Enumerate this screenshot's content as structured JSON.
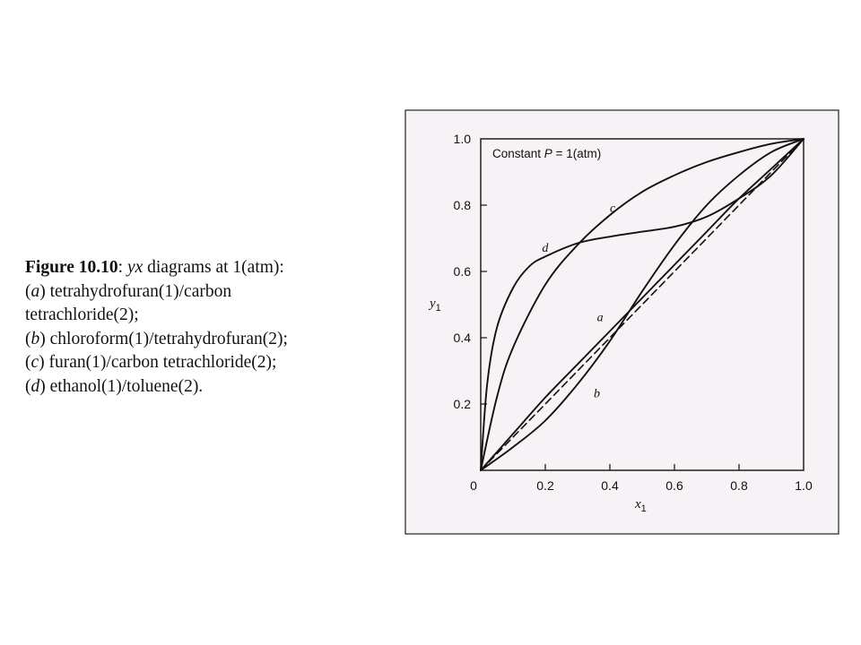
{
  "caption": {
    "figure_label": "Figure 10.10",
    "colon": ": ",
    "yx": "yx",
    "lead": " diagrams at 1(atm):",
    "items": [
      {
        "letter": "a",
        "line1": " tetrahydrofuran(1)/carbon",
        "line2": "tetrachloride(2);"
      },
      {
        "letter": "b",
        "line1": " chloroform(1)/tetrahydrofuran(2);"
      },
      {
        "letter": "c",
        "line1": " furan(1)/carbon tetrachloride(2);"
      },
      {
        "letter": "d",
        "line1": " ethanol(1)/toluene(2)."
      }
    ]
  },
  "colors": {
    "panel_background": "#f7f2f5",
    "panel_border": "#222222",
    "ink": "#111111"
  },
  "chart_data": {
    "type": "line",
    "annotation_prefix": "Constant ",
    "annotation_var": "P",
    "annotation_suffix": " = 1(atm)",
    "xlabel": "x",
    "xlabel_sub": "1",
    "ylabel": "y",
    "ylabel_sub": "1",
    "xlim": [
      0,
      1
    ],
    "ylim": [
      0,
      1
    ],
    "x_ticks": [
      {
        "value": 0,
        "label": "0"
      },
      {
        "value": 0.2,
        "label": "0.2"
      },
      {
        "value": 0.4,
        "label": "0.4"
      },
      {
        "value": 0.6,
        "label": "0.6"
      },
      {
        "value": 0.8,
        "label": "0.8"
      },
      {
        "value": 1.0,
        "label": "1.0"
      }
    ],
    "y_ticks": [
      {
        "value": 0.2,
        "label": "0.2"
      },
      {
        "value": 0.4,
        "label": "0.4"
      },
      {
        "value": 0.6,
        "label": "0.6"
      },
      {
        "value": 0.8,
        "label": "0.8"
      },
      {
        "value": 1.0,
        "label": "1.0"
      }
    ],
    "grid": false,
    "series": [
      {
        "label": "a",
        "label_at": [
          0.36,
          0.45
        ],
        "x": [
          0,
          0.1,
          0.2,
          0.3,
          0.4,
          0.5,
          0.6,
          0.7,
          0.8,
          0.9,
          1.0
        ],
        "y": [
          0,
          0.11,
          0.22,
          0.32,
          0.42,
          0.52,
          0.62,
          0.72,
          0.82,
          0.91,
          1.0
        ]
      },
      {
        "label": "b",
        "label_at": [
          0.35,
          0.22
        ],
        "x": [
          0,
          0.1,
          0.2,
          0.3,
          0.4,
          0.5,
          0.6,
          0.7,
          0.8,
          0.9,
          1.0
        ],
        "y": [
          0,
          0.07,
          0.15,
          0.26,
          0.39,
          0.54,
          0.68,
          0.8,
          0.89,
          0.96,
          1.0
        ]
      },
      {
        "label": "c",
        "label_at": [
          0.4,
          0.78
        ],
        "x": [
          0,
          0.05,
          0.1,
          0.2,
          0.3,
          0.4,
          0.5,
          0.6,
          0.7,
          0.8,
          0.9,
          1.0
        ],
        "y": [
          0,
          0.22,
          0.37,
          0.56,
          0.68,
          0.77,
          0.84,
          0.89,
          0.93,
          0.96,
          0.985,
          1.0
        ]
      },
      {
        "label": "d",
        "label_at": [
          0.19,
          0.66
        ],
        "x": [
          0,
          0.02,
          0.05,
          0.1,
          0.15,
          0.2,
          0.3,
          0.4,
          0.5,
          0.6,
          0.7,
          0.8,
          0.9,
          1.0
        ],
        "y": [
          0,
          0.26,
          0.43,
          0.55,
          0.615,
          0.645,
          0.685,
          0.705,
          0.72,
          0.735,
          0.765,
          0.82,
          0.89,
          1.0
        ]
      },
      {
        "label": "",
        "style": "dashed",
        "x": [
          0,
          1.0
        ],
        "y": [
          0,
          1.0
        ]
      }
    ]
  }
}
